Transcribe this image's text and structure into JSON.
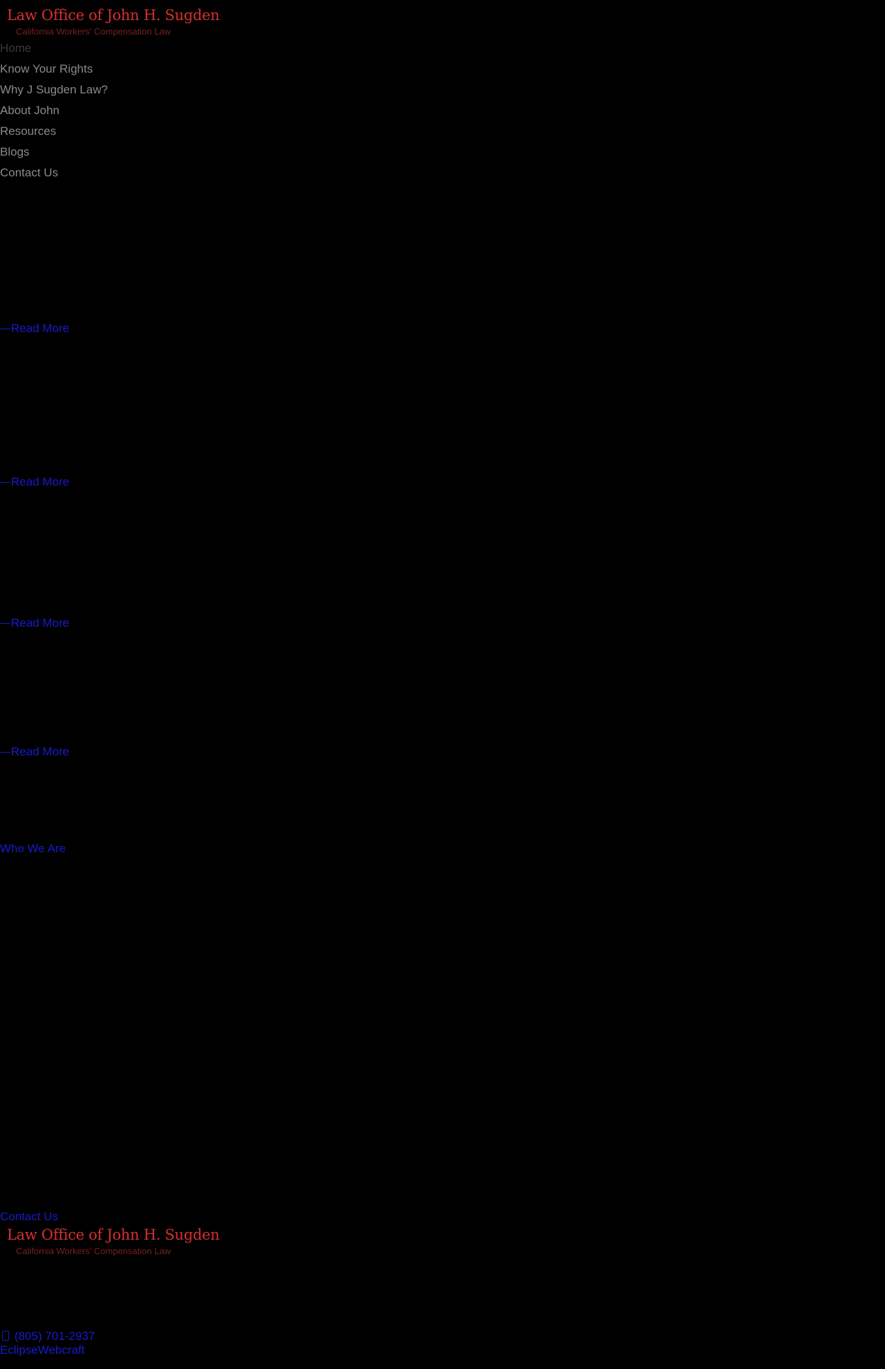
{
  "header": {
    "logo_title": "Law Office of John H. Sugden",
    "logo_subtitle": "California Workers' Compensation Law"
  },
  "nav": {
    "items": [
      {
        "label": "Home",
        "active": true
      },
      {
        "label": "Know Your Rights"
      },
      {
        "label": "Why J Sugden Law?"
      },
      {
        "label": "About John"
      },
      {
        "label": "Resources"
      },
      {
        "label": "Blogs"
      },
      {
        "label": "Contact Us"
      }
    ]
  },
  "main": {
    "read_more": [
      "Read More",
      "Read More",
      "Read More",
      "Read More"
    ],
    "who_we_are": "Who We Are",
    "contact_us": "Contact Us"
  },
  "footer": {
    "logo_title": "Law Office of John H. Sugden",
    "logo_subtitle": "California Workers' Compensation Law",
    "phone_icon": "phone-icon",
    "phone": "(805) 701-2937",
    "credit": "EclipseWebcraft"
  },
  "colors": {
    "background": "#000000",
    "logo_red": "#d8302f",
    "link_blue": "#1a1acc",
    "nav_gray": "#8a8a8a"
  }
}
